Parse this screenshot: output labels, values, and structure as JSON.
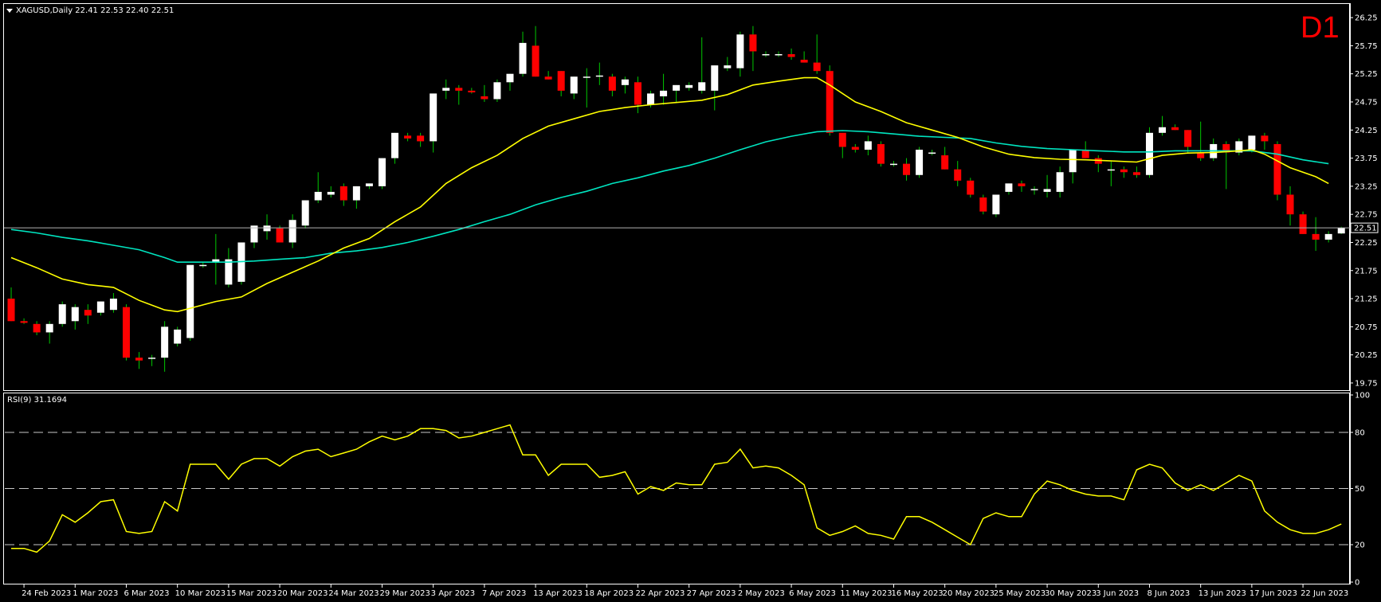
{
  "header": {
    "symbol_info": "XAGUSD,Daily  22.41 22.53 22.40 22.51",
    "timeframe": "D1",
    "current_price_label": "22.51",
    "rsi_label": "RSI(9) 31.1694"
  },
  "colors": {
    "background": "#000000",
    "bull": "#ffffff",
    "bear": "#ff0000",
    "ma_fast": "#ffff00",
    "ma_slow": "#00e5c0",
    "rsi": "#ffff00",
    "grid_text": "#ffffff",
    "timeframe": "#ff0000"
  },
  "chart_data": [
    {
      "type": "candlestick",
      "symbol": "XAGUSD",
      "period": "Daily",
      "ylim": [
        19.65,
        26.45
      ],
      "y_ticks": [
        "26.25",
        "25.75",
        "25.25",
        "24.75",
        "24.25",
        "23.75",
        "23.25",
        "22.75",
        "22.25",
        "21.75",
        "21.25",
        "20.75",
        "20.25",
        "19.75"
      ],
      "x_tick_labels": [
        {
          "i": 1,
          "label": "24 Feb 2023"
        },
        {
          "i": 5,
          "label": "1 Mar 2023"
        },
        {
          "i": 9,
          "label": "6 Mar 2023"
        },
        {
          "i": 13,
          "label": "10 Mar 2023"
        },
        {
          "i": 17,
          "label": "15 Mar 2023"
        },
        {
          "i": 21,
          "label": "20 Mar 2023"
        },
        {
          "i": 25,
          "label": "24 Mar 2023"
        },
        {
          "i": 29,
          "label": "29 Mar 2023"
        },
        {
          "i": 33,
          "label": "3 Apr 2023"
        },
        {
          "i": 37,
          "label": "7 Apr 2023"
        },
        {
          "i": 41,
          "label": "13 Apr 2023"
        },
        {
          "i": 45,
          "label": "18 Apr 2023"
        },
        {
          "i": 49,
          "label": "22 Apr 2023"
        },
        {
          "i": 53,
          "label": "27 Apr 2023"
        },
        {
          "i": 57,
          "label": "2 May 2023"
        },
        {
          "i": 61,
          "label": "6 May 2023"
        },
        {
          "i": 65,
          "label": "11 May 2023"
        },
        {
          "i": 69,
          "label": "16 May 2023"
        },
        {
          "i": 73,
          "label": "20 May 2023"
        },
        {
          "i": 77,
          "label": "25 May 2023"
        },
        {
          "i": 81,
          "label": "30 May 2023"
        },
        {
          "i": 85,
          "label": "3 Jun 2023"
        },
        {
          "i": 89,
          "label": "8 Jun 2023"
        },
        {
          "i": 93,
          "label": "13 Jun 2023"
        },
        {
          "i": 97,
          "label": "17 Jun 2023"
        },
        {
          "i": 101,
          "label": "22 Jun 2023"
        }
      ],
      "current_price": 22.51,
      "candles": [
        [
          21.25,
          21.45,
          20.85,
          20.85
        ],
        [
          20.85,
          20.9,
          20.8,
          20.82
        ],
        [
          20.8,
          20.85,
          20.6,
          20.65
        ],
        [
          20.65,
          20.85,
          20.45,
          20.8
        ],
        [
          20.8,
          21.2,
          20.75,
          21.15
        ],
        [
          20.85,
          21.15,
          20.7,
          21.1
        ],
        [
          21.05,
          21.15,
          20.8,
          20.95
        ],
        [
          21.0,
          21.2,
          20.95,
          21.2
        ],
        [
          21.05,
          21.35,
          21.0,
          21.25
        ],
        [
          21.1,
          21.15,
          20.15,
          20.2
        ],
        [
          20.2,
          20.3,
          20.0,
          20.15
        ],
        [
          20.2,
          20.25,
          20.05,
          20.2
        ],
        [
          20.2,
          20.85,
          19.95,
          20.75
        ],
        [
          20.45,
          20.75,
          20.4,
          20.7
        ],
        [
          20.55,
          21.85,
          20.5,
          21.85
        ],
        [
          21.85,
          21.9,
          21.8,
          21.85
        ],
        [
          21.9,
          22.4,
          21.5,
          21.95
        ],
        [
          21.5,
          22.15,
          21.45,
          21.95
        ],
        [
          21.55,
          22.25,
          21.5,
          22.25
        ],
        [
          22.25,
          22.55,
          22.15,
          22.55
        ],
        [
          22.45,
          22.75,
          22.3,
          22.55
        ],
        [
          22.5,
          22.55,
          22.25,
          22.25
        ],
        [
          22.25,
          22.75,
          22.15,
          22.65
        ],
        [
          22.55,
          23.0,
          22.5,
          23.0
        ],
        [
          23.0,
          23.5,
          22.95,
          23.15
        ],
        [
          23.1,
          23.25,
          23.05,
          23.15
        ],
        [
          23.25,
          23.3,
          22.9,
          23.0
        ],
        [
          23.0,
          23.25,
          22.85,
          23.25
        ],
        [
          23.25,
          23.3,
          23.2,
          23.3
        ],
        [
          23.25,
          23.75,
          23.2,
          23.75
        ],
        [
          23.75,
          24.2,
          23.65,
          24.2
        ],
        [
          24.15,
          24.2,
          24.05,
          24.1
        ],
        [
          24.15,
          24.2,
          23.95,
          24.05
        ],
        [
          24.05,
          24.9,
          23.85,
          24.9
        ],
        [
          24.95,
          25.15,
          24.8,
          25.0
        ],
        [
          25.0,
          25.05,
          24.7,
          24.95
        ],
        [
          24.95,
          25.0,
          24.9,
          24.92
        ],
        [
          24.85,
          25.05,
          24.75,
          24.8
        ],
        [
          24.8,
          25.15,
          24.75,
          25.1
        ],
        [
          25.1,
          25.25,
          24.95,
          25.25
        ],
        [
          25.25,
          26.0,
          25.2,
          25.8
        ],
        [
          25.75,
          26.1,
          25.2,
          25.2
        ],
        [
          25.2,
          25.3,
          25.15,
          25.15
        ],
        [
          25.3,
          25.3,
          24.85,
          24.95
        ],
        [
          24.9,
          25.2,
          24.8,
          25.2
        ],
        [
          25.2,
          25.35,
          24.65,
          25.2
        ],
        [
          25.2,
          25.45,
          25.05,
          25.22
        ],
        [
          25.2,
          25.25,
          24.85,
          24.95
        ],
        [
          25.05,
          25.2,
          24.9,
          25.15
        ],
        [
          25.1,
          25.2,
          24.55,
          24.7
        ],
        [
          24.7,
          24.95,
          24.65,
          24.9
        ],
        [
          24.85,
          25.25,
          24.7,
          24.95
        ],
        [
          24.95,
          25.05,
          24.75,
          25.05
        ],
        [
          25.0,
          25.1,
          24.95,
          25.05
        ],
        [
          24.95,
          25.9,
          24.9,
          25.1
        ],
        [
          24.95,
          25.4,
          24.6,
          25.4
        ],
        [
          25.35,
          25.55,
          25.3,
          25.4
        ],
        [
          25.35,
          26.0,
          25.2,
          25.95
        ],
        [
          25.95,
          26.1,
          25.3,
          25.65
        ],
        [
          25.6,
          25.65,
          25.55,
          25.6
        ],
        [
          25.6,
          25.65,
          25.55,
          25.6
        ],
        [
          25.6,
          25.7,
          25.5,
          25.55
        ],
        [
          25.5,
          25.65,
          25.45,
          25.45
        ],
        [
          25.45,
          25.95,
          25.25,
          25.3
        ],
        [
          25.3,
          25.4,
          24.15,
          24.2
        ],
        [
          24.2,
          24.2,
          23.75,
          23.95
        ],
        [
          23.95,
          24.0,
          23.85,
          23.9
        ],
        [
          23.9,
          24.15,
          23.8,
          24.05
        ],
        [
          24.0,
          24.05,
          23.6,
          23.65
        ],
        [
          23.65,
          23.7,
          23.6,
          23.65
        ],
        [
          23.65,
          23.75,
          23.35,
          23.45
        ],
        [
          23.45,
          23.95,
          23.4,
          23.9
        ],
        [
          23.85,
          23.9,
          23.8,
          23.85
        ],
        [
          23.8,
          23.95,
          23.55,
          23.55
        ],
        [
          23.55,
          23.7,
          23.25,
          23.35
        ],
        [
          23.35,
          23.4,
          23.05,
          23.1
        ],
        [
          23.05,
          23.1,
          22.75,
          22.8
        ],
        [
          22.75,
          23.1,
          22.7,
          23.1
        ],
        [
          23.15,
          23.3,
          23.1,
          23.3
        ],
        [
          23.3,
          23.35,
          23.15,
          23.25
        ],
        [
          23.2,
          23.25,
          23.1,
          23.2
        ],
        [
          23.15,
          23.45,
          23.05,
          23.2
        ],
        [
          23.15,
          23.6,
          23.05,
          23.5
        ],
        [
          23.5,
          23.9,
          23.3,
          23.9
        ],
        [
          23.9,
          24.05,
          23.75,
          23.75
        ],
        [
          23.75,
          23.8,
          23.5,
          23.65
        ],
        [
          23.55,
          23.7,
          23.25,
          23.55
        ],
        [
          23.55,
          23.6,
          23.4,
          23.5
        ],
        [
          23.5,
          23.6,
          23.4,
          23.45
        ],
        [
          23.45,
          24.3,
          23.4,
          24.2
        ],
        [
          24.2,
          24.5,
          24.15,
          24.3
        ],
        [
          24.3,
          24.35,
          24.25,
          24.25
        ],
        [
          24.25,
          24.25,
          23.85,
          23.95
        ],
        [
          23.85,
          24.4,
          23.7,
          23.75
        ],
        [
          23.75,
          24.1,
          23.7,
          24.0
        ],
        [
          24.0,
          24.05,
          23.2,
          23.85
        ],
        [
          23.85,
          24.1,
          23.8,
          24.05
        ],
        [
          23.9,
          24.15,
          23.85,
          24.15
        ],
        [
          24.15,
          24.2,
          23.9,
          24.05
        ],
        [
          24.0,
          24.05,
          23.0,
          23.1
        ],
        [
          23.1,
          23.25,
          22.55,
          22.75
        ],
        [
          22.75,
          22.8,
          22.4,
          22.4
        ],
        [
          22.4,
          22.7,
          22.1,
          22.3
        ],
        [
          22.3,
          22.45,
          22.25,
          22.4
        ],
        [
          22.41,
          22.53,
          22.4,
          22.51
        ]
      ],
      "ma_fast": [
        [
          0,
          21.98
        ],
        [
          2,
          21.8
        ],
        [
          4,
          21.6
        ],
        [
          6,
          21.5
        ],
        [
          8,
          21.45
        ],
        [
          10,
          21.22
        ],
        [
          12,
          21.05
        ],
        [
          13,
          21.02
        ],
        [
          14,
          21.08
        ],
        [
          16,
          21.2
        ],
        [
          18,
          21.28
        ],
        [
          20,
          21.52
        ],
        [
          22,
          21.72
        ],
        [
          24,
          21.92
        ],
        [
          26,
          22.15
        ],
        [
          28,
          22.32
        ],
        [
          30,
          22.62
        ],
        [
          32,
          22.88
        ],
        [
          34,
          23.3
        ],
        [
          36,
          23.58
        ],
        [
          38,
          23.8
        ],
        [
          40,
          24.1
        ],
        [
          42,
          24.32
        ],
        [
          44,
          24.45
        ],
        [
          46,
          24.58
        ],
        [
          48,
          24.65
        ],
        [
          50,
          24.7
        ],
        [
          52,
          24.74
        ],
        [
          54,
          24.78
        ],
        [
          56,
          24.88
        ],
        [
          58,
          25.05
        ],
        [
          60,
          25.12
        ],
        [
          62,
          25.18
        ],
        [
          63,
          25.18
        ],
        [
          64,
          25.05
        ],
        [
          66,
          24.75
        ],
        [
          68,
          24.58
        ],
        [
          70,
          24.38
        ],
        [
          72,
          24.25
        ],
        [
          74,
          24.12
        ],
        [
          76,
          23.95
        ],
        [
          78,
          23.82
        ],
        [
          80,
          23.76
        ],
        [
          82,
          23.73
        ],
        [
          84,
          23.72
        ],
        [
          86,
          23.7
        ],
        [
          88,
          23.68
        ],
        [
          90,
          23.8
        ],
        [
          92,
          23.84
        ],
        [
          94,
          23.85
        ],
        [
          96,
          23.88
        ],
        [
          97,
          23.9
        ],
        [
          98,
          23.82
        ],
        [
          100,
          23.58
        ],
        [
          102,
          23.42
        ],
        [
          103,
          23.3
        ]
      ],
      "ma_slow": [
        [
          0,
          22.48
        ],
        [
          2,
          22.42
        ],
        [
          4,
          22.34
        ],
        [
          6,
          22.28
        ],
        [
          8,
          22.2
        ],
        [
          10,
          22.12
        ],
        [
          12,
          21.98
        ],
        [
          13,
          21.9
        ],
        [
          15,
          21.9
        ],
        [
          17,
          21.9
        ],
        [
          19,
          21.92
        ],
        [
          21,
          21.95
        ],
        [
          23,
          21.98
        ],
        [
          25,
          22.06
        ],
        [
          27,
          22.1
        ],
        [
          29,
          22.16
        ],
        [
          31,
          22.25
        ],
        [
          33,
          22.36
        ],
        [
          35,
          22.48
        ],
        [
          37,
          22.62
        ],
        [
          39,
          22.75
        ],
        [
          41,
          22.92
        ],
        [
          43,
          23.05
        ],
        [
          45,
          23.16
        ],
        [
          47,
          23.3
        ],
        [
          49,
          23.4
        ],
        [
          51,
          23.52
        ],
        [
          53,
          23.62
        ],
        [
          55,
          23.75
        ],
        [
          57,
          23.9
        ],
        [
          59,
          24.04
        ],
        [
          61,
          24.14
        ],
        [
          63,
          24.22
        ],
        [
          65,
          24.24
        ],
        [
          67,
          24.22
        ],
        [
          69,
          24.18
        ],
        [
          71,
          24.14
        ],
        [
          73,
          24.12
        ],
        [
          75,
          24.1
        ],
        [
          77,
          24.02
        ],
        [
          79,
          23.96
        ],
        [
          81,
          23.92
        ],
        [
          83,
          23.9
        ],
        [
          85,
          23.88
        ],
        [
          87,
          23.86
        ],
        [
          89,
          23.86
        ],
        [
          91,
          23.88
        ],
        [
          93,
          23.88
        ],
        [
          95,
          23.88
        ],
        [
          97,
          23.88
        ],
        [
          99,
          23.82
        ],
        [
          101,
          23.72
        ],
        [
          103,
          23.65
        ]
      ]
    },
    {
      "type": "line",
      "name": "RSI(9) 31.1694",
      "ylim": [
        0,
        100
      ],
      "y_ticks": [
        "100",
        "80",
        "50",
        "20",
        "0"
      ],
      "levels": [
        80,
        50,
        20
      ],
      "values": [
        18,
        18,
        16,
        22,
        36,
        32,
        37,
        43,
        44,
        27,
        26,
        27,
        43,
        38,
        63,
        63,
        63,
        55,
        63,
        66,
        66,
        62,
        67,
        70,
        71,
        67,
        69,
        71,
        75,
        78,
        76,
        78,
        82,
        82,
        81,
        77,
        78,
        80,
        82,
        84,
        68,
        68,
        57,
        63,
        63,
        63,
        56,
        57,
        59,
        47,
        51,
        49,
        53,
        52,
        52,
        63,
        64,
        71,
        61,
        62,
        61,
        57,
        52,
        29,
        25,
        27,
        30,
        26,
        25,
        23,
        35,
        35,
        32,
        28,
        24,
        20,
        34,
        37,
        35,
        35,
        47,
        54,
        52,
        49,
        47,
        46,
        46,
        44,
        60,
        63,
        61,
        53,
        49,
        52,
        49,
        53,
        57,
        54,
        38,
        32,
        28,
        26,
        26,
        28,
        31
      ]
    }
  ]
}
